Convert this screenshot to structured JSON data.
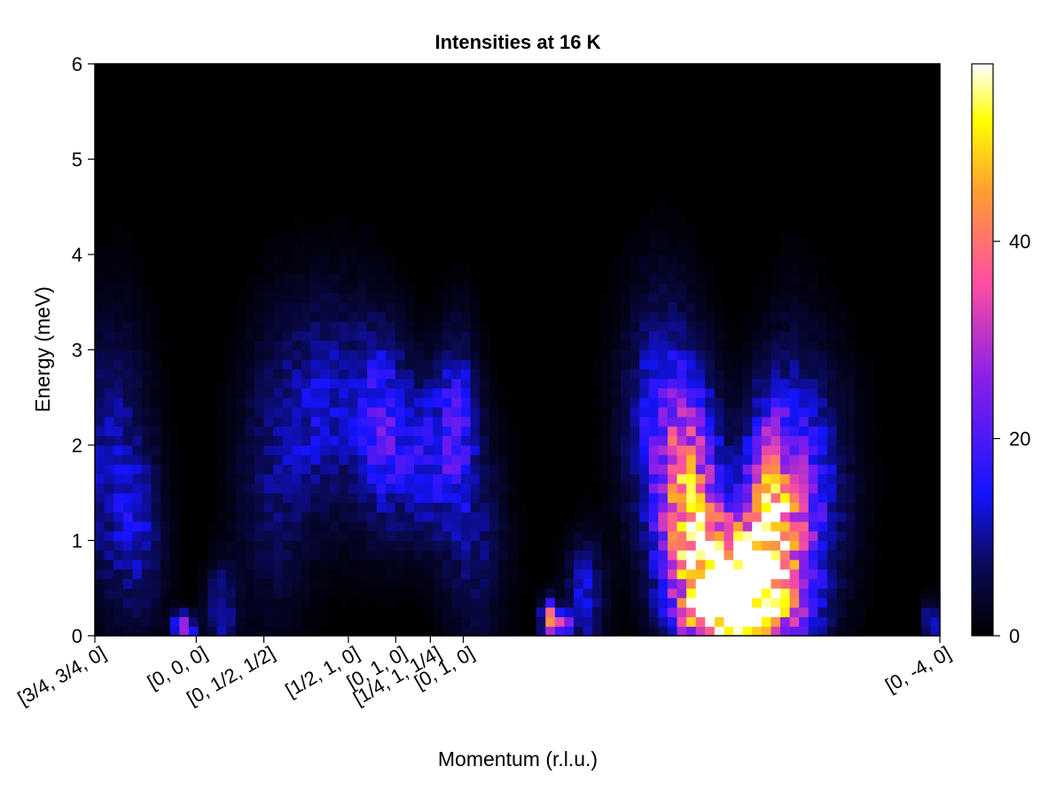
{
  "chart_data": {
    "type": "heatmap",
    "title": "Intensities at 16 K",
    "xlabel": "Momentum (r.l.u.)",
    "ylabel": "Energy (meV)",
    "xlim": [
      0,
      100
    ],
    "ylim": [
      0,
      6
    ],
    "yticks": [
      0,
      1,
      2,
      3,
      4,
      5,
      6
    ],
    "xticks": [
      {
        "pos": 0,
        "label": "[3/4, 3/4, 0]"
      },
      {
        "pos": 12,
        "label": "[0, 0, 0]"
      },
      {
        "pos": 20,
        "label": "[0, 1/2, 1/2]"
      },
      {
        "pos": 30,
        "label": "[1/2, 1, 0]"
      },
      {
        "pos": 35.6,
        "label": "[0, 1, 0]"
      },
      {
        "pos": 39.7,
        "label": "[1/4, 1, 1/4]"
      },
      {
        "pos": 43.6,
        "label": "[0, 1, 0]"
      },
      {
        "pos": 100,
        "label": "[0, -4, 0]"
      }
    ],
    "colorbar": {
      "colormap": "plasma-like (black-blue-magenta-orange-yellow-white)",
      "range": [
        0,
        58
      ],
      "ticks": [
        0,
        20,
        40
      ]
    },
    "grid": false,
    "n_x_bins": 90,
    "n_e_bins": 60,
    "features": [
      {
        "x": 2.0,
        "e": 1.8,
        "sx": 3.0,
        "se": 1.0,
        "amp": 11
      },
      {
        "x": 5.5,
        "e": 1.0,
        "sx": 2.0,
        "se": 0.6,
        "amp": 8
      },
      {
        "x": 10.5,
        "e": 0.1,
        "sx": 0.9,
        "se": 0.1,
        "amp": 30
      },
      {
        "x": 15.0,
        "e": 0.3,
        "sx": 1.2,
        "se": 0.3,
        "amp": 12
      },
      {
        "x": 21.0,
        "e": 1.6,
        "sx": 3.0,
        "se": 1.0,
        "amp": 7
      },
      {
        "x": 27.5,
        "e": 2.4,
        "sx": 4.0,
        "se": 0.8,
        "amp": 12
      },
      {
        "x": 34.0,
        "e": 2.2,
        "sx": 2.0,
        "se": 0.7,
        "amp": 15
      },
      {
        "x": 39.5,
        "e": 1.9,
        "sx": 3.0,
        "se": 0.6,
        "amp": 15
      },
      {
        "x": 43.0,
        "e": 2.4,
        "sx": 1.5,
        "se": 0.6,
        "amp": 12
      },
      {
        "x": 45.0,
        "e": 1.0,
        "sx": 2.5,
        "se": 0.8,
        "amp": 8
      },
      {
        "x": 53.8,
        "e": 0.15,
        "sx": 0.6,
        "se": 0.15,
        "amp": 45
      },
      {
        "x": 55.5,
        "e": 0.1,
        "sx": 0.5,
        "se": 0.1,
        "amp": 35
      },
      {
        "x": 58.0,
        "e": 0.4,
        "sx": 1.5,
        "se": 0.4,
        "amp": 14
      },
      {
        "x": 67.0,
        "e": 2.2,
        "sx": 3.0,
        "se": 0.9,
        "amp": 16
      },
      {
        "x": 70.5,
        "e": 1.3,
        "sx": 2.5,
        "se": 0.8,
        "amp": 38
      },
      {
        "x": 75.5,
        "e": 0.4,
        "sx": 3.5,
        "se": 0.5,
        "amp": 75
      },
      {
        "x": 79.5,
        "e": 1.3,
        "sx": 2.0,
        "se": 0.7,
        "amp": 36
      },
      {
        "x": 82.5,
        "e": 0.9,
        "sx": 2.5,
        "se": 1.2,
        "amp": 22
      },
      {
        "x": 86.0,
        "e": 1.5,
        "sx": 3.0,
        "se": 0.9,
        "amp": 9
      },
      {
        "x": 99.0,
        "e": 0.15,
        "sx": 0.7,
        "se": 0.15,
        "amp": 14
      }
    ]
  }
}
